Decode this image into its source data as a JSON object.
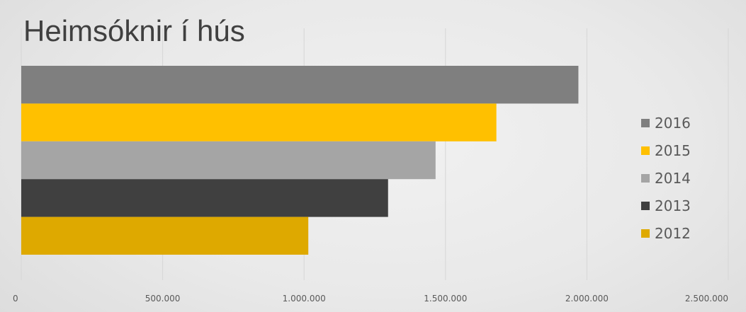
{
  "chart_data": {
    "type": "bar",
    "orientation": "horizontal",
    "title": "Heimsóknir í hús",
    "series": [
      {
        "name": "2016",
        "color": "#7f7f7f",
        "value": 1970000
      },
      {
        "name": "2015",
        "color": "#ffc000",
        "value": 1680000
      },
      {
        "name": "2014",
        "color": "#a5a5a5",
        "value": 1465000
      },
      {
        "name": "2013",
        "color": "#404040",
        "value": 1297000
      },
      {
        "name": "2012",
        "color": "#dea900",
        "value": 1015000
      }
    ],
    "x_ticks": [
      "0",
      "500.000",
      "1.000.000",
      "1.500.000",
      "2.000.000",
      "2.500.000"
    ],
    "x_tick_values": [
      0,
      500000,
      1000000,
      1500000,
      2000000,
      2500000
    ],
    "xlim": [
      0,
      2500000
    ],
    "grid": true,
    "legend_position": "right"
  }
}
